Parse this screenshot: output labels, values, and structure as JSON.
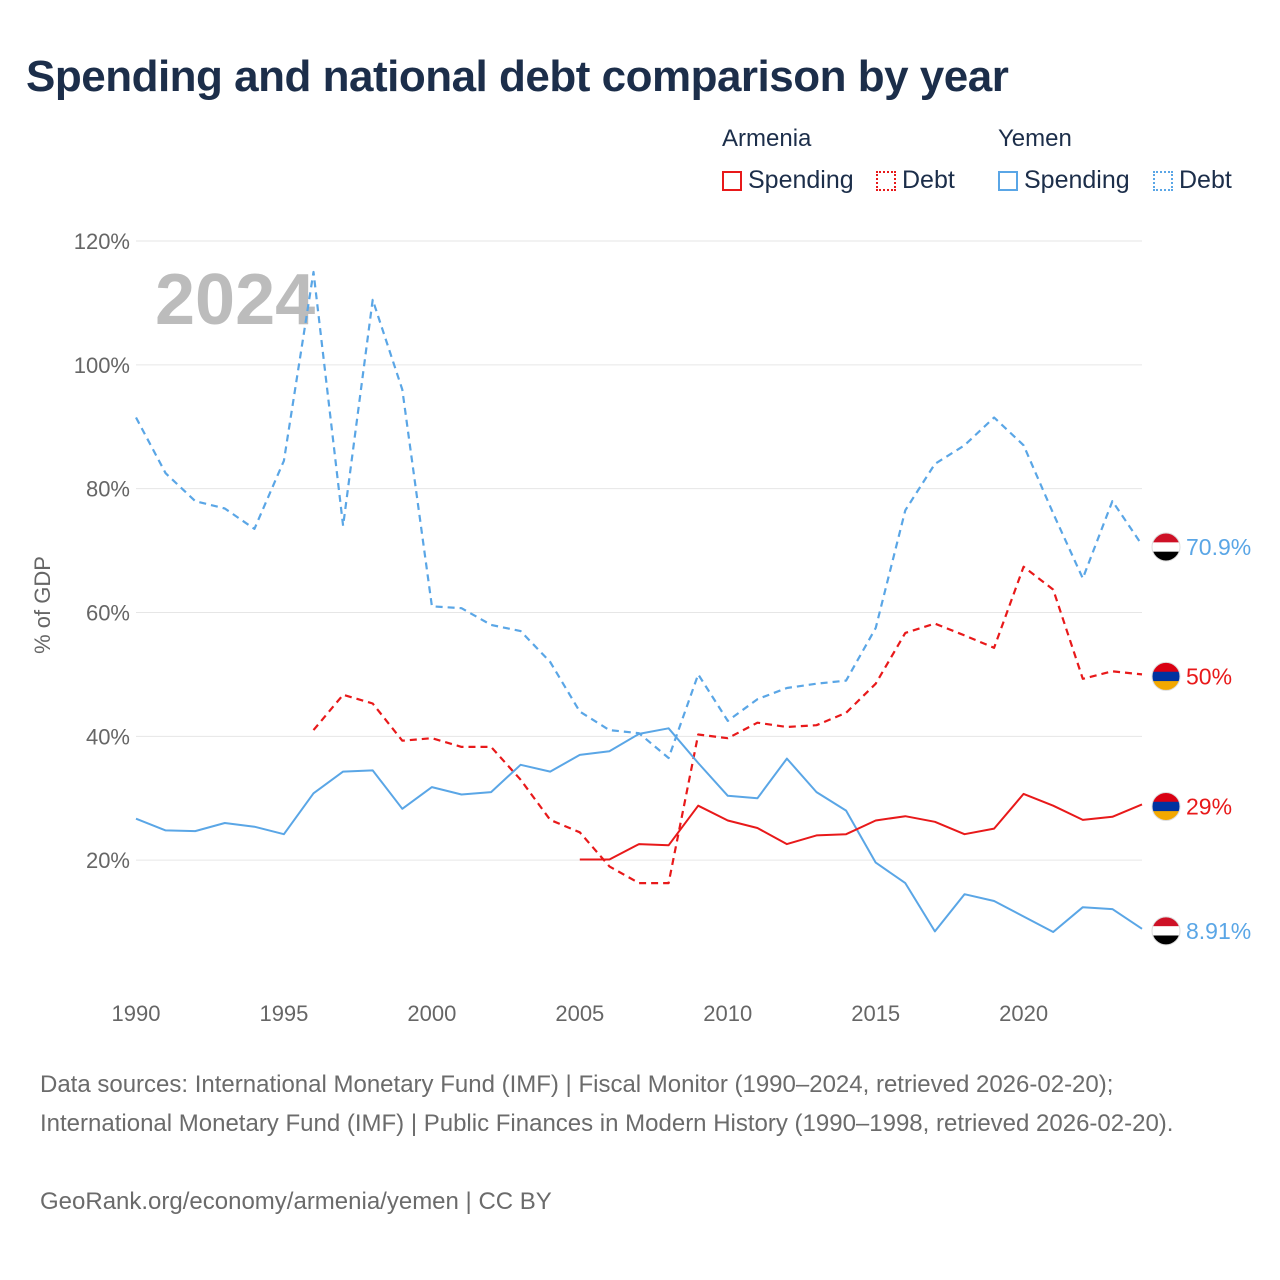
{
  "title": "Spending and national debt comparison by year",
  "legend": {
    "armenia": {
      "name": "Armenia",
      "spending": "Spending",
      "debt": "Debt",
      "color": "#e8191a"
    },
    "yemen": {
      "name": "Yemen",
      "spending": "Spending",
      "debt": "Debt",
      "color": "#5aa6e6"
    }
  },
  "chart_data": {
    "type": "line",
    "title": "Spending and national debt comparison by year",
    "ylabel": "% of GDP",
    "xlabel": "",
    "year_label": "2024",
    "xlim": [
      1990,
      2024
    ],
    "ylim": [
      0,
      120
    ],
    "grid": true,
    "x_ticks": [
      1990,
      1995,
      2000,
      2005,
      2010,
      2015,
      2020
    ],
    "y_ticks": [
      20,
      40,
      60,
      80,
      100,
      120
    ],
    "y_tick_labels": [
      "20%",
      "40%",
      "60%",
      "80%",
      "100%",
      "120%"
    ],
    "series": [
      {
        "name": "Yemen Debt",
        "country": "Yemen",
        "kind": "Debt",
        "color": "#5aa6e6",
        "dashed": true,
        "x": [
          1990,
          1991,
          1992,
          1993,
          1994,
          1995,
          1996,
          1997,
          1998,
          1999,
          2000,
          2001,
          2002,
          2003,
          2004,
          2005,
          2006,
          2007,
          2008,
          2009,
          2010,
          2011,
          2012,
          2013,
          2014,
          2015,
          2016,
          2017,
          2018,
          2019,
          2020,
          2021,
          2022,
          2023,
          2024
        ],
        "y": [
          91.5,
          82.5,
          78,
          76.8,
          73.5,
          84.5,
          115,
          74,
          110.5,
          96,
          61,
          60.7,
          58,
          57,
          52,
          44,
          41,
          40.5,
          36.5,
          50,
          42.5,
          46,
          47.8,
          48.5,
          49,
          57.5,
          76.5,
          84,
          87,
          91.5,
          87,
          76,
          65.5,
          78,
          70.9
        ]
      },
      {
        "name": "Armenia Debt",
        "country": "Armenia",
        "kind": "Debt",
        "color": "#e8191a",
        "dashed": true,
        "x": [
          1996,
          1997,
          1998,
          1999,
          2000,
          2001,
          2002,
          2003,
          2004,
          2005,
          2006,
          2007,
          2008,
          2009,
          2010,
          2011,
          2012,
          2013,
          2014,
          2015,
          2016,
          2017,
          2018,
          2019,
          2020,
          2021,
          2022,
          2023,
          2024
        ],
        "y": [
          41,
          46.7,
          45.3,
          39.3,
          39.7,
          38.3,
          38.3,
          33,
          26.5,
          24.5,
          19,
          16.3,
          16.3,
          40.3,
          39.7,
          42.2,
          41.5,
          41.8,
          43.8,
          48.5,
          56.7,
          58.2,
          56.3,
          54.3,
          67.4,
          63.7,
          49.3,
          50.5,
          50
        ]
      },
      {
        "name": "Yemen Spending",
        "country": "Yemen",
        "kind": "Spending",
        "color": "#5aa6e6",
        "dashed": false,
        "x": [
          1990,
          1991,
          1992,
          1993,
          1994,
          1995,
          1996,
          1997,
          1998,
          1999,
          2000,
          2001,
          2002,
          2003,
          2004,
          2005,
          2006,
          2007,
          2008,
          2009,
          2010,
          2011,
          2012,
          2013,
          2014,
          2015,
          2016,
          2017,
          2018,
          2019,
          2020,
          2021,
          2022,
          2023,
          2024
        ],
        "y": [
          26.7,
          24.8,
          24.7,
          26,
          25.4,
          24.2,
          30.8,
          34.3,
          34.5,
          28.3,
          31.8,
          30.6,
          31,
          35.4,
          34.3,
          37,
          37.6,
          40.4,
          41.3,
          35.7,
          30.4,
          30,
          36.4,
          31,
          28,
          19.6,
          16.3,
          8.5,
          14.5,
          13.4,
          10.9,
          8.4,
          12.4,
          12.1,
          8.91
        ]
      },
      {
        "name": "Armenia Spending",
        "country": "Armenia",
        "kind": "Spending",
        "color": "#e8191a",
        "dashed": false,
        "x": [
          2005,
          2006,
          2007,
          2008,
          2009,
          2010,
          2011,
          2012,
          2013,
          2014,
          2015,
          2016,
          2017,
          2018,
          2019,
          2020,
          2021,
          2022,
          2023,
          2024
        ],
        "y": [
          20.1,
          20.1,
          22.6,
          22.4,
          28.8,
          26.4,
          25.2,
          22.6,
          24,
          24.2,
          26.4,
          27.1,
          26.2,
          24.2,
          25.1,
          30.7,
          28.8,
          26.5,
          27,
          29
        ]
      }
    ],
    "end_labels": [
      {
        "series": "Yemen Debt",
        "text": "70.9%",
        "color": "#5aa6e6",
        "flag": "yemen"
      },
      {
        "series": "Armenia Debt",
        "text": "50%",
        "color": "#e8191a",
        "flag": "armenia"
      },
      {
        "series": "Armenia Spending",
        "text": "29%",
        "color": "#e8191a",
        "flag": "armenia"
      },
      {
        "series": "Yemen Spending",
        "text": "8.91%",
        "color": "#5aa6e6",
        "flag": "yemen"
      }
    ]
  },
  "footer": {
    "sources": "Data sources: International Monetary Fund (IMF) | Fiscal Monitor (1990–2024, retrieved 2026-02-20); International Monetary Fund (IMF) | Public Finances in Modern History (1990–1998, retrieved 2026-02-20).",
    "credit": "GeoRank.org/economy/armenia/yemen | CC BY"
  }
}
